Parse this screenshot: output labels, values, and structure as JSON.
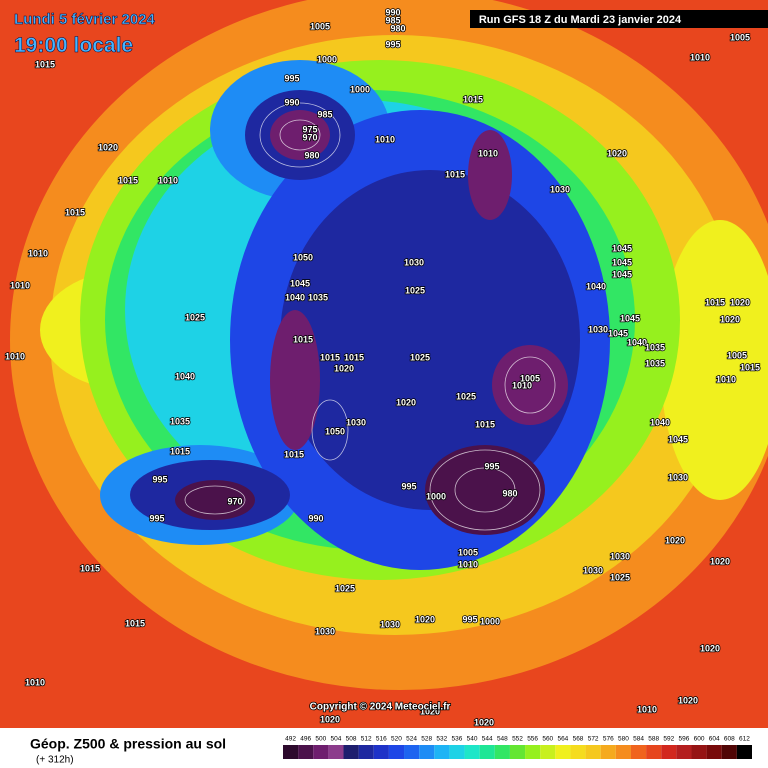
{
  "header": {
    "date": "Lundi 5 février 2024",
    "time": "19:00 locale",
    "run": "Run GFS 18 Z du Mardi 23 janvier 2024"
  },
  "copyright": "Copyright © 2024 Meteociel.fr",
  "footer": {
    "title": "Géop. Z500 & pression au sol",
    "lead": "(+ 312h)"
  },
  "isobar_labels": [
    "1005",
    "1000",
    "995",
    "990",
    "985",
    "975",
    "970",
    "980",
    "1015",
    "1020",
    "1015",
    "1010",
    "1015",
    "1010",
    "1010",
    "1025",
    "1010",
    "1040",
    "1035",
    "1015",
    "995",
    "995",
    "970",
    "990",
    "1015",
    "1015",
    "1010",
    "1030",
    "1025",
    "1050",
    "1045",
    "1040",
    "1035",
    "1015",
    "1015",
    "1020",
    "1015",
    "1050",
    "1030",
    "1015",
    "1030",
    "1025",
    "1025",
    "1020",
    "1025",
    "1015",
    "995",
    "1000",
    "995",
    "980",
    "1005",
    "1010",
    "1015",
    "1010",
    "1015",
    "1030",
    "1020",
    "1005",
    "1010",
    "1045",
    "1045",
    "1045",
    "1040",
    "1045",
    "1030",
    "1045",
    "1040",
    "1035",
    "1035",
    "1040",
    "1045",
    "1030",
    "1020",
    "1020",
    "1030",
    "1030",
    "1025",
    "1020",
    "1010",
    "1020",
    "1010",
    "1005",
    "1015",
    "1020",
    "1020",
    "1005",
    "1015",
    "1010",
    "995",
    "990",
    "985",
    "980",
    "1000",
    "1010",
    "1020",
    "1030",
    "995",
    "1000",
    "1020",
    "1020",
    "1020"
  ],
  "scale": {
    "labels": [
      492,
      496,
      500,
      504,
      508,
      512,
      516,
      520,
      524,
      528,
      532,
      536,
      540,
      544,
      548,
      552,
      556,
      560,
      564,
      568,
      572,
      576,
      580,
      584,
      588,
      592,
      596,
      600,
      604,
      608,
      612
    ],
    "colors": [
      "#2d0a2d",
      "#4b124b",
      "#6e1e6e",
      "#8c3c8c",
      "#1e1e6e",
      "#1e28a0",
      "#1e32c8",
      "#1e46e6",
      "#1e64f0",
      "#1e8cf5",
      "#1eb4f5",
      "#1ed2e6",
      "#1ee6c8",
      "#1ee696",
      "#32e664",
      "#64e632",
      "#96f01e",
      "#c8f01e",
      "#f0f01e",
      "#f5dc1e",
      "#f5c81e",
      "#f5aa1e",
      "#f58c1e",
      "#f0641e",
      "#e6461e",
      "#d2281e",
      "#b41e1e",
      "#961414",
      "#780a0a",
      "#500505",
      "#000000"
    ]
  }
}
